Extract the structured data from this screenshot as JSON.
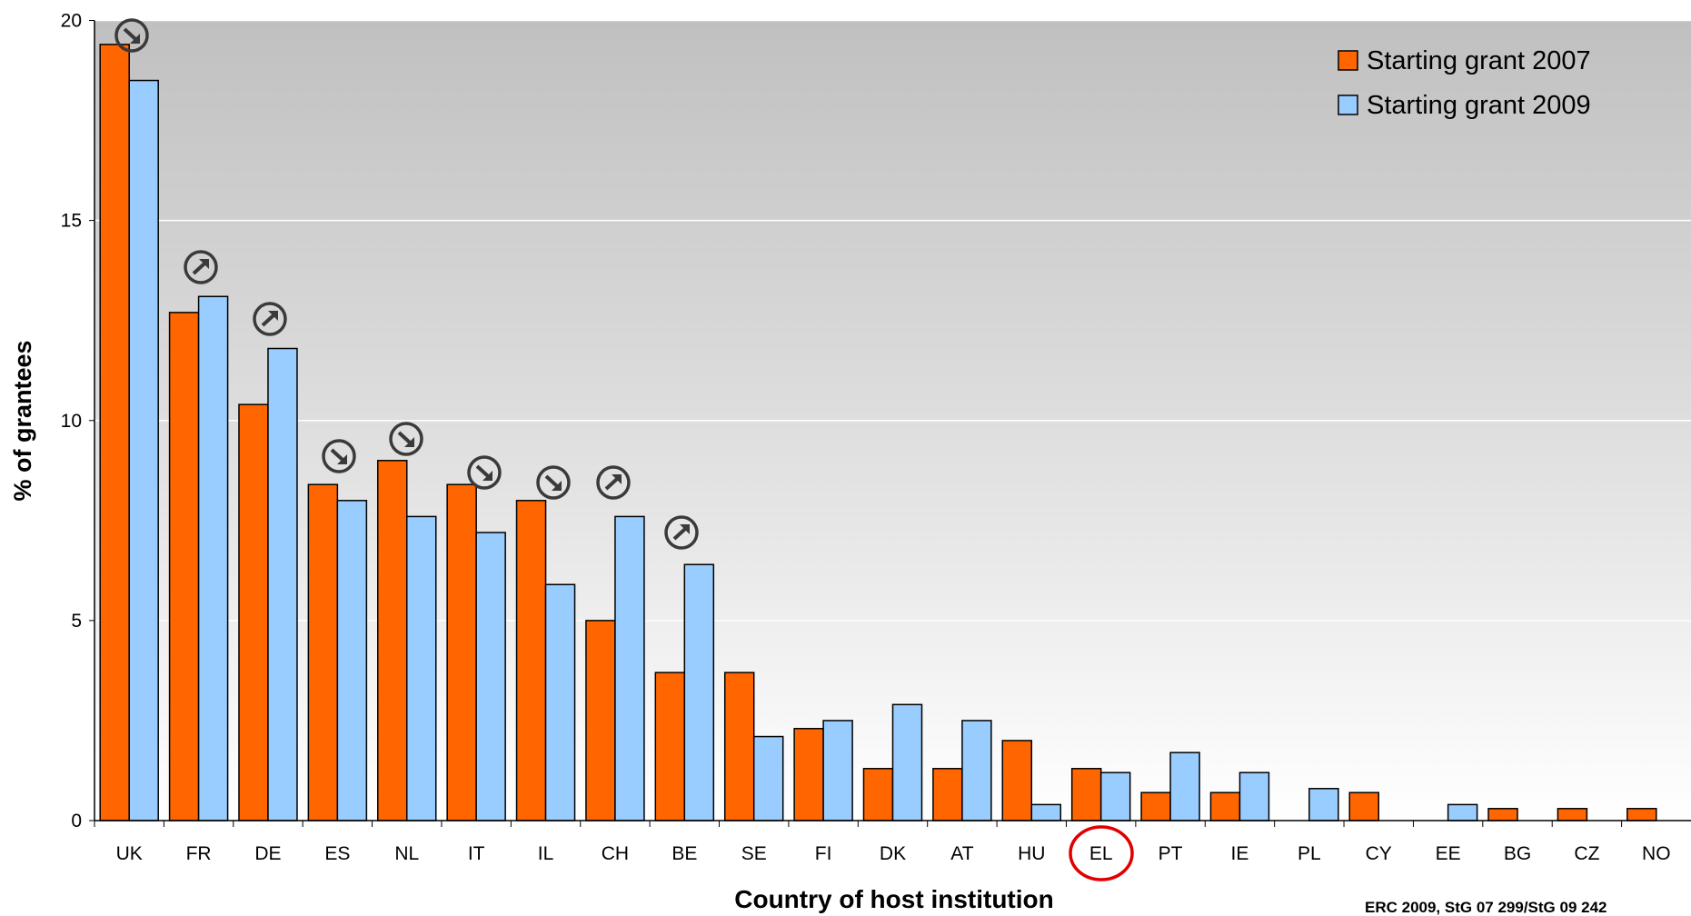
{
  "chart_data": {
    "type": "bar",
    "x_label": "Country of host institution",
    "y_label": "% of grantees",
    "source": "ERC 2009, StG 07 299/StG 09 242",
    "categories": [
      "UK",
      "FR",
      "DE",
      "ES",
      "NL",
      "IT",
      "IL",
      "CH",
      "BE",
      "SE",
      "FI",
      "DK",
      "AT",
      "HU",
      "EL",
      "PT",
      "IE",
      "PL",
      "CY",
      "EE",
      "BG",
      "CZ",
      "NO"
    ],
    "series": [
      {
        "name": "Starting grant 2007",
        "color": "#ff6600",
        "values": [
          19.4,
          12.7,
          10.4,
          8.4,
          9.0,
          8.4,
          8.0,
          5.0,
          3.7,
          3.7,
          2.3,
          1.3,
          1.3,
          2.0,
          1.3,
          0.7,
          0.7,
          null,
          0.7,
          null,
          0.3,
          0.3,
          0.3
        ]
      },
      {
        "name": "Starting grant 2009",
        "color": "#99ccff",
        "values": [
          18.5,
          13.1,
          11.8,
          8.0,
          7.6,
          7.2,
          5.9,
          7.6,
          6.4,
          2.1,
          2.5,
          2.9,
          2.5,
          0.4,
          1.2,
          1.7,
          1.2,
          0.8,
          null,
          0.4,
          null,
          null,
          null
        ]
      }
    ],
    "ylim": [
      0,
      20
    ],
    "yticks": [
      0,
      5,
      10,
      15,
      20
    ],
    "grid": true,
    "legend": "top-right"
  }
}
